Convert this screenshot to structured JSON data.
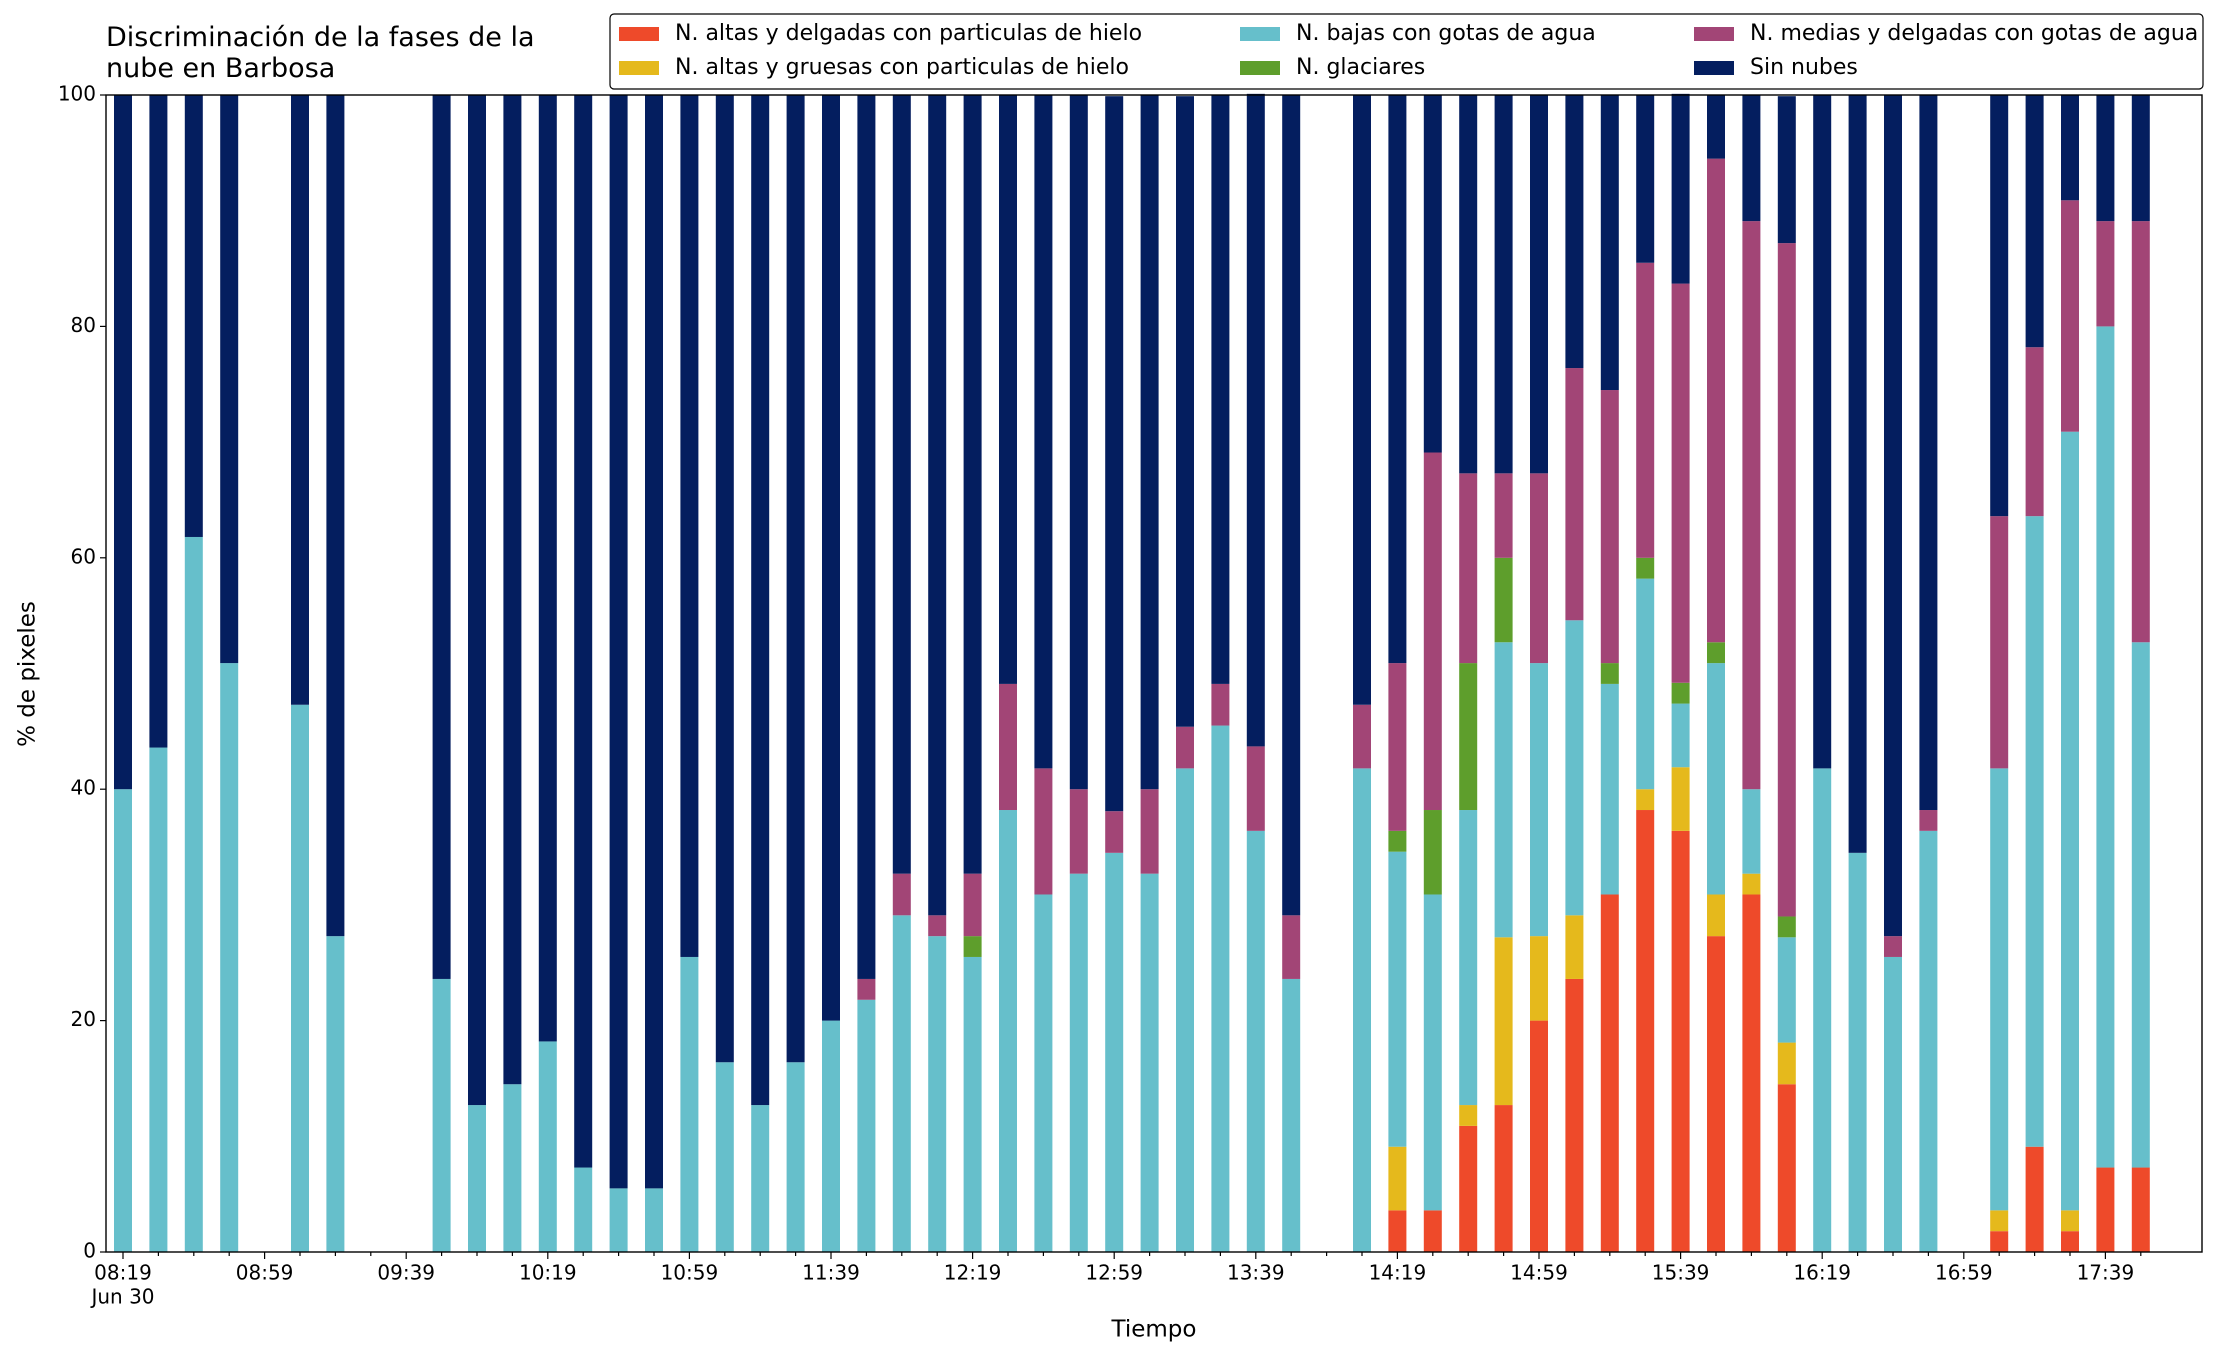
{
  "chart_data": {
    "type": "stacked_bar",
    "title": "Discriminación de la fases de la nube en Barbosa",
    "x_label": "Tiempo",
    "y_label": "% de pixeles",
    "x_date_label": "Jun 30",
    "categories": [
      "08:19",
      null,
      null,
      null,
      "08:59",
      null,
      null,
      null,
      "09:39",
      null,
      null,
      null,
      "10:19",
      null,
      null,
      null,
      "10:59",
      null,
      null,
      null,
      "11:39",
      null,
      null,
      null,
      "12:19",
      null,
      null,
      null,
      "12:59",
      null,
      null,
      null,
      "13:39",
      null,
      null,
      null,
      "14:19",
      null,
      null,
      null,
      "14:59",
      null,
      null,
      null,
      "15:39",
      null,
      null,
      null,
      "16:19",
      null,
      null,
      null,
      "16:59",
      null,
      null,
      null,
      "17:39",
      null
    ],
    "ylim": [
      0,
      100
    ],
    "yticks": [
      0,
      20,
      40,
      60,
      80,
      100
    ],
    "grid": false,
    "legend": "top",
    "series": [
      {
        "name": "N. altas y delgadas con particulas de hielo",
        "color": "#ee4a2a",
        "values": [
          0,
          0,
          0,
          0,
          null,
          0,
          0,
          null,
          null,
          0,
          0,
          0,
          0,
          0,
          0,
          0,
          0,
          0,
          0,
          0,
          0,
          0,
          0,
          0,
          0,
          0,
          0,
          0,
          0,
          0,
          0,
          0,
          0,
          0,
          null,
          0,
          3.6,
          3.6,
          10.9,
          12.7,
          20,
          23.6,
          30.9,
          38.2,
          36.4,
          27.3,
          30.9,
          14.5,
          0,
          0,
          0,
          0,
          null,
          1.8,
          9.1,
          1.8,
          7.3,
          7.3
        ]
      },
      {
        "name": "N. altas y gruesas con particulas de hielo",
        "color": "#e5b91c",
        "values": [
          0,
          0,
          0,
          0,
          null,
          0,
          0,
          null,
          null,
          0,
          0,
          0,
          0,
          0,
          0,
          0,
          0,
          0,
          0,
          0,
          0,
          0,
          0,
          0,
          0,
          0,
          0,
          0,
          0,
          0,
          0,
          0,
          0,
          0,
          null,
          0,
          5.5,
          0,
          1.8,
          14.5,
          7.3,
          5.5,
          0,
          1.8,
          5.5,
          3.6,
          1.8,
          3.6,
          0,
          0,
          0,
          0,
          null,
          1.8,
          0,
          1.8,
          0,
          0
        ]
      },
      {
        "name": "N. bajas con gotas de agua",
        "color": "#66bfcb",
        "values": [
          40,
          43.6,
          61.8,
          50.9,
          null,
          47.3,
          27.3,
          null,
          null,
          23.6,
          12.7,
          14.5,
          18.2,
          7.3,
          5.5,
          5.5,
          25.5,
          16.4,
          12.7,
          16.4,
          20,
          21.8,
          29.1,
          27.3,
          25.5,
          38.2,
          30.9,
          32.7,
          34.5,
          32.7,
          41.8,
          45.5,
          36.4,
          23.6,
          null,
          41.8,
          25.5,
          27.3,
          25.5,
          25.5,
          23.6,
          25.5,
          18.2,
          18.2,
          5.5,
          20,
          7.3,
          9.1,
          41.8,
          34.5,
          25.5,
          36.4,
          null,
          38.2,
          54.5,
          67.3,
          72.7,
          45.4
        ]
      },
      {
        "name": "N. glaciares",
        "color": "#5e9e2c",
        "values": [
          0,
          0,
          0,
          0,
          null,
          0,
          0,
          null,
          null,
          0,
          0,
          0,
          0,
          0,
          0,
          0,
          0,
          0,
          0,
          0,
          0,
          0,
          0,
          0,
          1.8,
          0,
          0,
          0,
          0,
          0,
          0,
          0,
          0,
          0,
          null,
          0,
          1.8,
          7.3,
          12.7,
          7.3,
          0,
          0,
          1.8,
          1.8,
          1.8,
          1.8,
          0,
          1.8,
          0,
          0,
          0,
          0,
          null,
          0,
          0,
          0,
          0,
          0
        ]
      },
      {
        "name": "N. medias y delgadas con gotas de agua",
        "color": "#a24576",
        "values": [
          0,
          0,
          0,
          0,
          null,
          0,
          0,
          null,
          null,
          0,
          0,
          0,
          0,
          0,
          0,
          0,
          0,
          0,
          0,
          0,
          0,
          1.8,
          3.6,
          1.8,
          5.4,
          10.9,
          10.9,
          7.3,
          3.6,
          7.3,
          3.6,
          3.6,
          7.3,
          5.5,
          null,
          5.5,
          14.5,
          30.9,
          16.4,
          7.3,
          16.4,
          21.8,
          23.6,
          25.5,
          34.5,
          41.8,
          49.1,
          58.2,
          0,
          0,
          1.8,
          1.8,
          null,
          21.8,
          14.6,
          20,
          9.1,
          36.4
        ]
      },
      {
        "name": "Sin nubes",
        "color": "#041e5f",
        "values": [
          60,
          56.4,
          38.2,
          49.1,
          null,
          52.7,
          72.7,
          null,
          null,
          76.4,
          87.3,
          85.5,
          81.8,
          92.7,
          94.5,
          94.5,
          74.5,
          83.6,
          87.3,
          83.6,
          80,
          76.4,
          67.3,
          70.9,
          67.3,
          50.9,
          58.2,
          60,
          61.8,
          60,
          54.5,
          50.9,
          56.4,
          70.9,
          null,
          52.7,
          49.1,
          30.9,
          32.7,
          32.7,
          32.7,
          23.6,
          25.5,
          14.5,
          16.4,
          5.5,
          10.9,
          12.7,
          58.2,
          65.5,
          72.7,
          61.8,
          null,
          36.4,
          21.8,
          9.1,
          10.9,
          10.9
        ]
      }
    ]
  }
}
